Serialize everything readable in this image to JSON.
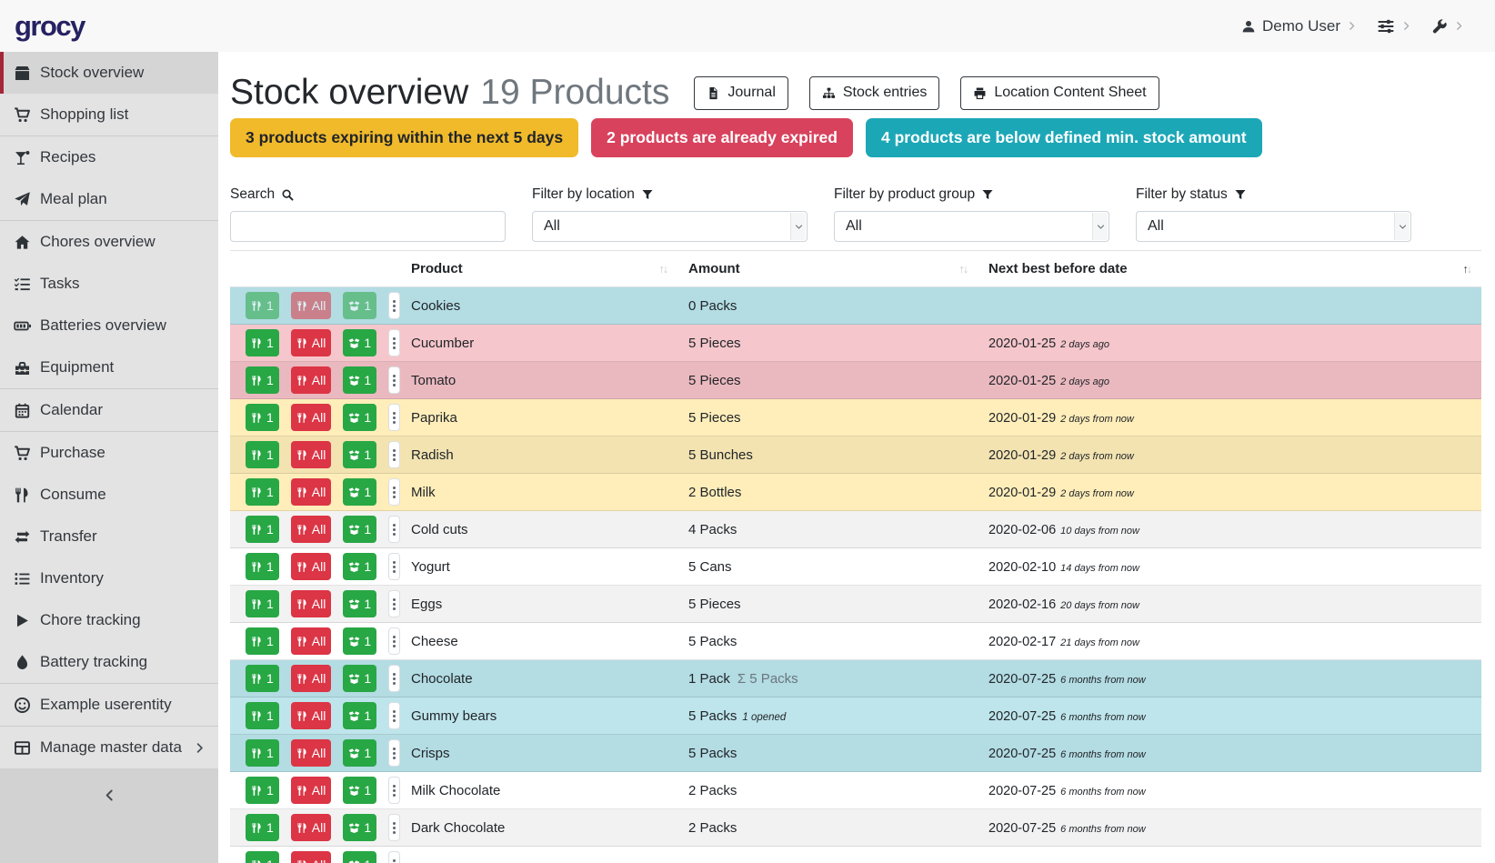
{
  "navbar": {
    "brand": "grocy",
    "user": {
      "label": "Demo User",
      "icon": "user"
    },
    "menus": [
      {
        "icon": "sliders"
      },
      {
        "icon": "wrench"
      }
    ]
  },
  "sidebar": {
    "items": [
      {
        "label": "Stock overview",
        "icon": "box",
        "active": true
      },
      {
        "label": "Shopping list",
        "icon": "cart",
        "divider_after": true
      },
      {
        "label": "Recipes",
        "icon": "cocktail"
      },
      {
        "label": "Meal plan",
        "icon": "plane",
        "divider_after": true
      },
      {
        "label": "Chores overview",
        "icon": "home"
      },
      {
        "label": "Tasks",
        "icon": "tasks"
      },
      {
        "label": "Batteries overview",
        "icon": "battery"
      },
      {
        "label": "Equipment",
        "icon": "toolbox",
        "divider_after": true
      },
      {
        "label": "Calendar",
        "icon": "calendar",
        "divider_after": true
      },
      {
        "label": "Purchase",
        "icon": "cart"
      },
      {
        "label": "Consume",
        "icon": "utensils"
      },
      {
        "label": "Transfer",
        "icon": "exchange"
      },
      {
        "label": "Inventory",
        "icon": "list"
      },
      {
        "label": "Chore tracking",
        "icon": "play"
      },
      {
        "label": "Battery tracking",
        "icon": "tint",
        "divider_after": true
      },
      {
        "label": "Example userentity",
        "icon": "smile",
        "divider_after": true
      },
      {
        "label": "Manage master data",
        "icon": "table",
        "chevron": true
      }
    ],
    "collapse_icon": "chevron-left"
  },
  "header": {
    "title": "Stock overview",
    "subtitle": "19 Products",
    "buttons": [
      {
        "label": "Journal",
        "icon": "file"
      },
      {
        "label": "Stock entries",
        "icon": "sitemap"
      },
      {
        "label": "Location Content Sheet",
        "icon": "print"
      }
    ]
  },
  "alerts": [
    {
      "text": "3 products expiring within the next 5 days",
      "type": "warning",
      "color": "#f1ba2b"
    },
    {
      "text": "2 products are already expired",
      "type": "danger",
      "color": "#d8425d"
    },
    {
      "text": "4 products are below defined min. stock amount",
      "type": "info",
      "color": "#1ca7b7"
    }
  ],
  "filters": {
    "search": {
      "label": "Search",
      "value": "",
      "icon": "search"
    },
    "location": {
      "label": "Filter by location",
      "value": "All",
      "icon": "filter"
    },
    "product_group": {
      "label": "Filter by product group",
      "value": "All",
      "icon": "filter"
    },
    "status": {
      "label": "Filter by status",
      "value": "All",
      "icon": "filter"
    }
  },
  "table": {
    "columns": [
      "",
      "Product",
      "Amount",
      "Next best before date"
    ],
    "sort": {
      "column": "Next best before date",
      "direction": "asc"
    },
    "row_buttons": {
      "consume_one": "1",
      "consume_all": "All",
      "open_one": "1"
    },
    "rows": [
      {
        "product": "Cookies",
        "amount": "0 Packs",
        "date": "",
        "timeago": "",
        "style": "info",
        "disabled": true
      },
      {
        "product": "Cucumber",
        "amount": "5 Pieces",
        "date": "2020-01-25",
        "timeago": "2 days ago",
        "style": "danger"
      },
      {
        "product": "Tomato",
        "amount": "5 Pieces",
        "date": "2020-01-25",
        "timeago": "2 days ago",
        "style": "danger"
      },
      {
        "product": "Paprika",
        "amount": "5 Pieces",
        "date": "2020-01-29",
        "timeago": "2 days from now",
        "style": "warning"
      },
      {
        "product": "Radish",
        "amount": "5 Bunches",
        "date": "2020-01-29",
        "timeago": "2 days from now",
        "style": "warning"
      },
      {
        "product": "Milk",
        "amount": "2 Bottles",
        "date": "2020-01-29",
        "timeago": "2 days from now",
        "style": "warning"
      },
      {
        "product": "Cold cuts",
        "amount": "4 Packs",
        "date": "2020-02-06",
        "timeago": "10 days from now",
        "style": "none"
      },
      {
        "product": "Yogurt",
        "amount": "5 Cans",
        "date": "2020-02-10",
        "timeago": "14 days from now",
        "style": "none"
      },
      {
        "product": "Eggs",
        "amount": "5 Pieces",
        "date": "2020-02-16",
        "timeago": "20 days from now",
        "style": "none"
      },
      {
        "product": "Cheese",
        "amount": "5 Packs",
        "date": "2020-02-17",
        "timeago": "21 days from now",
        "style": "none"
      },
      {
        "product": "Chocolate",
        "amount": "1 Pack",
        "amount_sum": "Σ 5 Packs",
        "date": "2020-07-25",
        "timeago": "6 months from now",
        "style": "info"
      },
      {
        "product": "Gummy bears",
        "amount": "5 Packs",
        "amount_opened": "1 opened",
        "date": "2020-07-25",
        "timeago": "6 months from now",
        "style": "info"
      },
      {
        "product": "Crisps",
        "amount": "5 Packs",
        "date": "2020-07-25",
        "timeago": "6 months from now",
        "style": "info"
      },
      {
        "product": "Milk Chocolate",
        "amount": "2 Packs",
        "date": "2020-07-25",
        "timeago": "6 months from now",
        "style": "none"
      },
      {
        "product": "Dark Chocolate",
        "amount": "2 Packs",
        "date": "2020-07-25",
        "timeago": "6 months from now",
        "style": "none"
      },
      {
        "product": "",
        "amount": "",
        "date": "",
        "timeago": "",
        "style": "none",
        "partial": true
      }
    ]
  },
  "colors": {
    "brand_logo": "#262262",
    "sidebar_active_accent": "#a62639",
    "button_success": "#28a745",
    "button_danger": "#dc3545",
    "row_info": "#bee5eb",
    "row_danger": "#f5c6cb",
    "row_warning": "#ffeeba"
  }
}
